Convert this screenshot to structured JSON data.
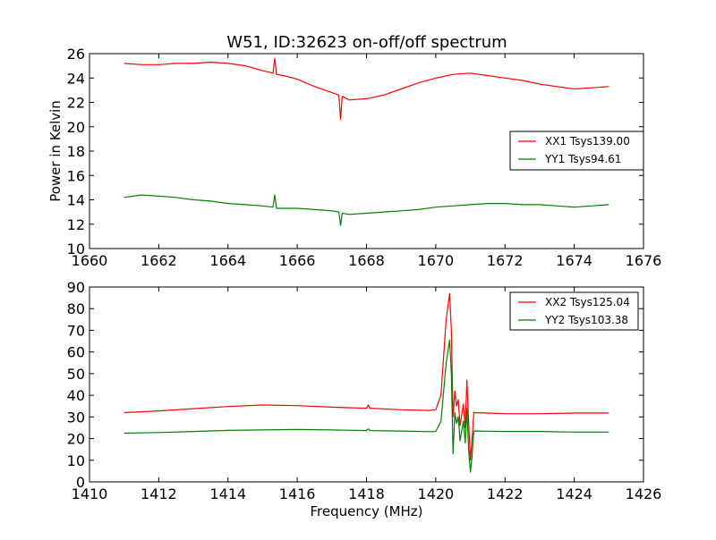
{
  "figure_title": "W51, ID:32623 on-off/off spectrum",
  "chart_data": [
    {
      "type": "line",
      "title": "W51, ID:32623 on-off/off spectrum",
      "xlabel": "",
      "ylabel": "Power in Kelvin",
      "xlim": [
        1660,
        1676
      ],
      "ylim": [
        10,
        26
      ],
      "xticks": [
        1660,
        1662,
        1664,
        1666,
        1668,
        1670,
        1672,
        1674,
        1676
      ],
      "yticks": [
        10,
        12,
        14,
        16,
        18,
        20,
        22,
        24,
        26
      ],
      "grid": false,
      "legend_position": "center-right",
      "series": [
        {
          "name": "XX1 Tsys139.00",
          "color": "#ff0000",
          "points": [
            [
              1661.0,
              25.2
            ],
            [
              1661.5,
              25.1
            ],
            [
              1662.0,
              25.1
            ],
            [
              1662.5,
              25.2
            ],
            [
              1663.0,
              25.2
            ],
            [
              1663.5,
              25.3
            ],
            [
              1664.0,
              25.2
            ],
            [
              1664.5,
              25.0
            ],
            [
              1665.0,
              24.6
            ],
            [
              1665.3,
              24.4
            ],
            [
              1665.35,
              25.6
            ],
            [
              1665.4,
              24.3
            ],
            [
              1665.6,
              24.2
            ],
            [
              1666.0,
              23.9
            ],
            [
              1666.5,
              23.3
            ],
            [
              1667.0,
              22.8
            ],
            [
              1667.2,
              22.6
            ],
            [
              1667.25,
              20.6
            ],
            [
              1667.3,
              22.5
            ],
            [
              1667.5,
              22.2
            ],
            [
              1668.0,
              22.3
            ],
            [
              1668.5,
              22.6
            ],
            [
              1669.0,
              23.1
            ],
            [
              1669.5,
              23.6
            ],
            [
              1670.0,
              24.0
            ],
            [
              1670.5,
              24.3
            ],
            [
              1671.0,
              24.4
            ],
            [
              1671.5,
              24.2
            ],
            [
              1672.0,
              24.0
            ],
            [
              1672.5,
              23.8
            ],
            [
              1673.0,
              23.5
            ],
            [
              1673.5,
              23.3
            ],
            [
              1674.0,
              23.1
            ],
            [
              1674.5,
              23.2
            ],
            [
              1675.0,
              23.3
            ]
          ]
        },
        {
          "name": "YY1 Tsys94.61",
          "color": "#008000",
          "points": [
            [
              1661.0,
              14.2
            ],
            [
              1661.5,
              14.4
            ],
            [
              1662.0,
              14.3
            ],
            [
              1662.5,
              14.2
            ],
            [
              1663.0,
              14.0
            ],
            [
              1663.5,
              13.9
            ],
            [
              1664.0,
              13.7
            ],
            [
              1664.5,
              13.6
            ],
            [
              1665.0,
              13.5
            ],
            [
              1665.3,
              13.4
            ],
            [
              1665.35,
              14.4
            ],
            [
              1665.4,
              13.3
            ],
            [
              1665.6,
              13.3
            ],
            [
              1666.0,
              13.3
            ],
            [
              1666.5,
              13.2
            ],
            [
              1667.0,
              13.1
            ],
            [
              1667.2,
              13.0
            ],
            [
              1667.25,
              11.9
            ],
            [
              1667.3,
              12.9
            ],
            [
              1667.5,
              12.8
            ],
            [
              1668.0,
              12.9
            ],
            [
              1668.5,
              13.0
            ],
            [
              1669.0,
              13.1
            ],
            [
              1669.5,
              13.2
            ],
            [
              1670.0,
              13.4
            ],
            [
              1670.5,
              13.5
            ],
            [
              1671.0,
              13.6
            ],
            [
              1671.5,
              13.7
            ],
            [
              1672.0,
              13.7
            ],
            [
              1672.5,
              13.6
            ],
            [
              1673.0,
              13.6
            ],
            [
              1673.5,
              13.5
            ],
            [
              1674.0,
              13.4
            ],
            [
              1674.5,
              13.5
            ],
            [
              1675.0,
              13.6
            ]
          ]
        }
      ]
    },
    {
      "type": "line",
      "title": "",
      "xlabel": "Frequency (MHz)",
      "ylabel": "",
      "xlim": [
        1410,
        1426
      ],
      "ylim": [
        0,
        90
      ],
      "xticks": [
        1410,
        1412,
        1414,
        1416,
        1418,
        1420,
        1422,
        1424,
        1426
      ],
      "yticks": [
        0,
        10,
        20,
        30,
        40,
        50,
        60,
        70,
        80,
        90
      ],
      "grid": false,
      "legend_position": "top-right",
      "series": [
        {
          "name": "XX2 Tsys125.04",
          "color": "#ff0000",
          "points": [
            [
              1411.0,
              32.0
            ],
            [
              1412.0,
              32.8
            ],
            [
              1413.0,
              33.8
            ],
            [
              1414.0,
              34.8
            ],
            [
              1415.0,
              35.5
            ],
            [
              1416.0,
              35.2
            ],
            [
              1417.0,
              34.5
            ],
            [
              1418.0,
              34.0
            ],
            [
              1418.05,
              35.5
            ],
            [
              1418.1,
              34.0
            ],
            [
              1419.0,
              33.3
            ],
            [
              1419.8,
              33.0
            ],
            [
              1420.0,
              33.3
            ],
            [
              1420.15,
              40.0
            ],
            [
              1420.3,
              75.0
            ],
            [
              1420.4,
              87.0
            ],
            [
              1420.45,
              70.0
            ],
            [
              1420.5,
              30.0
            ],
            [
              1420.55,
              42.0
            ],
            [
              1420.6,
              35.0
            ],
            [
              1420.65,
              38.0
            ],
            [
              1420.7,
              26.0
            ],
            [
              1420.8,
              36.0
            ],
            [
              1420.85,
              25.0
            ],
            [
              1420.9,
              47.0
            ],
            [
              1420.95,
              28.0
            ],
            [
              1421.0,
              10.0
            ],
            [
              1421.05,
              20.0
            ],
            [
              1421.1,
              32.0
            ],
            [
              1421.5,
              31.8
            ],
            [
              1422.0,
              31.5
            ],
            [
              1423.0,
              31.5
            ],
            [
              1424.0,
              31.8
            ],
            [
              1425.0,
              31.8
            ]
          ]
        },
        {
          "name": "YY2 Tsys103.38",
          "color": "#008000",
          "points": [
            [
              1411.0,
              22.5
            ],
            [
              1412.0,
              22.8
            ],
            [
              1413.0,
              23.3
            ],
            [
              1414.0,
              23.8
            ],
            [
              1415.0,
              24.0
            ],
            [
              1416.0,
              24.2
            ],
            [
              1417.0,
              24.0
            ],
            [
              1418.0,
              23.7
            ],
            [
              1418.05,
              24.5
            ],
            [
              1418.1,
              23.7
            ],
            [
              1419.0,
              23.5
            ],
            [
              1419.8,
              23.2
            ],
            [
              1420.0,
              23.3
            ],
            [
              1420.15,
              28.0
            ],
            [
              1420.3,
              55.0
            ],
            [
              1420.4,
              65.5
            ],
            [
              1420.45,
              50.0
            ],
            [
              1420.5,
              13.0
            ],
            [
              1420.55,
              32.0
            ],
            [
              1420.6,
              27.0
            ],
            [
              1420.65,
              30.0
            ],
            [
              1420.7,
              19.0
            ],
            [
              1420.8,
              28.0
            ],
            [
              1420.85,
              18.0
            ],
            [
              1420.9,
              34.0
            ],
            [
              1420.95,
              15.0
            ],
            [
              1421.0,
              4.5
            ],
            [
              1421.05,
              12.0
            ],
            [
              1421.1,
              23.5
            ],
            [
              1421.5,
              23.4
            ],
            [
              1422.0,
              23.3
            ],
            [
              1423.0,
              23.3
            ],
            [
              1424.0,
              23.0
            ],
            [
              1425.0,
              23.0
            ]
          ]
        }
      ]
    }
  ]
}
